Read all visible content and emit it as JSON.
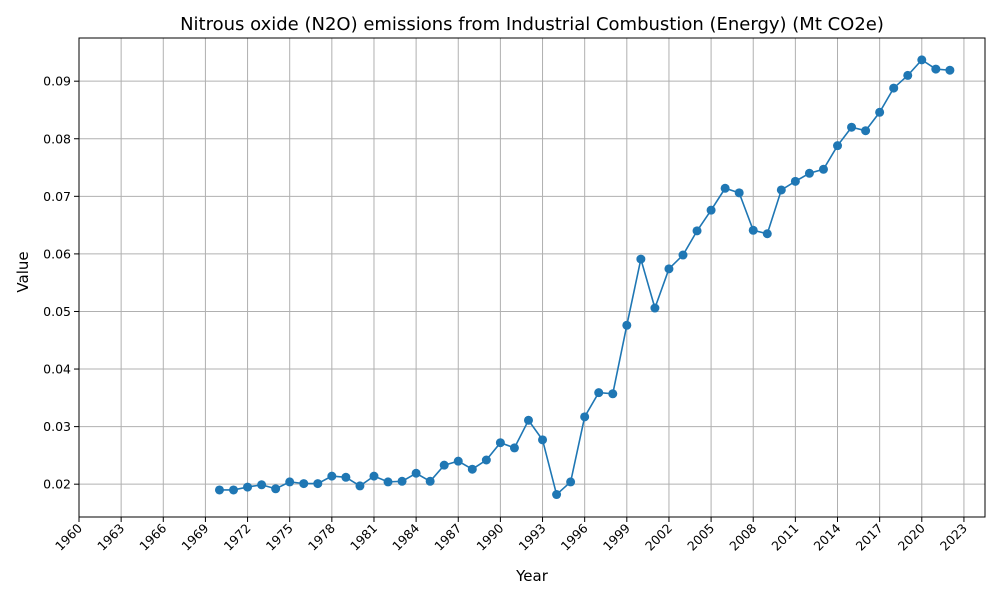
{
  "chart_data": {
    "type": "line",
    "title": "Nitrous oxide (N2O) emissions from Industrial Combustion (Energy) (Mt CO2e)",
    "xlabel": "Year",
    "ylabel": "Value",
    "xlim": [
      1960,
      2024.5
    ],
    "ylim": [
      0.0143,
      0.0975
    ],
    "x_ticks": [
      1960,
      1963,
      1966,
      1969,
      1972,
      1975,
      1978,
      1981,
      1984,
      1987,
      1990,
      1993,
      1996,
      1999,
      2002,
      2005,
      2008,
      2011,
      2014,
      2017,
      2020,
      2023
    ],
    "y_ticks": [
      0.02,
      0.03,
      0.04,
      0.05,
      0.06,
      0.07,
      0.08,
      0.09
    ],
    "y_tick_labels": [
      "0.02",
      "0.03",
      "0.04",
      "0.05",
      "0.06",
      "0.07",
      "0.08",
      "0.09"
    ],
    "grid": true,
    "color": "#1f77b4",
    "marker": "circle",
    "series": [
      {
        "x": [
          1970,
          1971,
          1972,
          1973,
          1974,
          1975,
          1976,
          1977,
          1978,
          1979,
          1980,
          1981,
          1982,
          1983,
          1984,
          1985,
          1986,
          1987,
          1988,
          1989,
          1990,
          1991,
          1992,
          1993,
          1994,
          1995,
          1996,
          1997,
          1998,
          1999,
          2000,
          2001,
          2002,
          2003,
          2004,
          2005,
          2006,
          2007,
          2008,
          2009,
          2010,
          2011,
          2012,
          2013,
          2014,
          2015,
          2016,
          2017,
          2018,
          2019,
          2020,
          2021,
          2022
        ],
        "values": [
          0.019,
          0.019,
          0.0195,
          0.0199,
          0.0192,
          0.0204,
          0.0201,
          0.0201,
          0.0214,
          0.0212,
          0.0197,
          0.0214,
          0.0204,
          0.0205,
          0.0219,
          0.0205,
          0.0233,
          0.024,
          0.0226,
          0.0242,
          0.0272,
          0.0263,
          0.0311,
          0.0277,
          0.0182,
          0.0204,
          0.0317,
          0.0359,
          0.0357,
          0.0476,
          0.0591,
          0.0506,
          0.0574,
          0.0598,
          0.064,
          0.0676,
          0.0714,
          0.0706,
          0.0641,
          0.0635,
          0.0711,
          0.0726,
          0.074,
          0.0747,
          0.0788,
          0.082,
          0.0814,
          0.0846,
          0.0888,
          0.091,
          0.0937,
          0.0921,
          0.0919
        ]
      }
    ]
  }
}
